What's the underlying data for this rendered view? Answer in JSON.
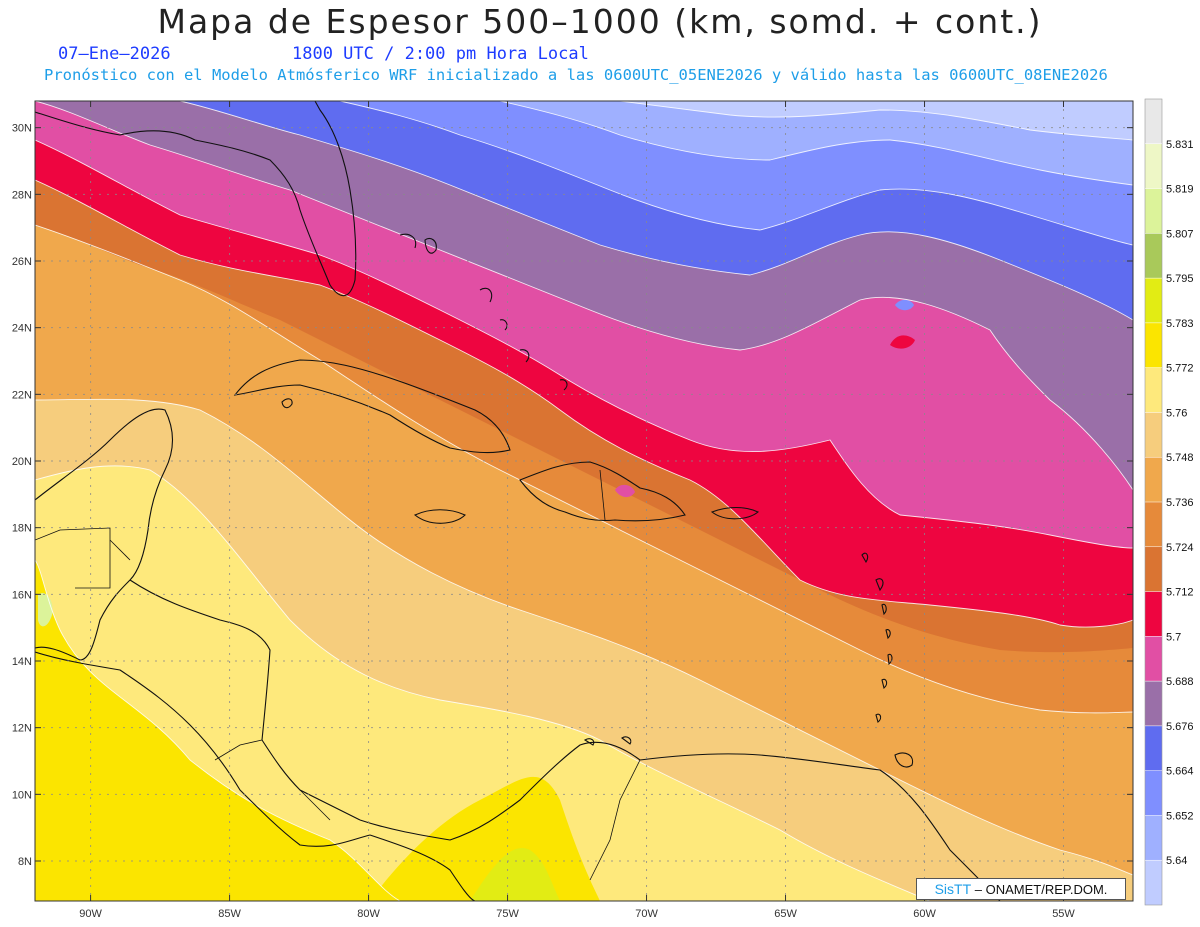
{
  "header": {
    "title": "Mapa de Espesor 500–1000 (km, somd. + cont.)",
    "date": "07–Ene–2026",
    "time": "1800 UTC / 2:00 pm Hora Local",
    "forecast": "Pronóstico con el Modelo Atmósferico WRF inicializado a las 0600UTC_05ENE2026 y válido hasta las  0600UTC_08ENE2026"
  },
  "map": {
    "lon_range": [
      -92,
      -52.5
    ],
    "lat_range": [
      6.8,
      30.8
    ],
    "lon_ticks": [
      {
        "value": -90,
        "label": "90W"
      },
      {
        "value": -85,
        "label": "85W"
      },
      {
        "value": -80,
        "label": "80W"
      },
      {
        "value": -75,
        "label": "75W"
      },
      {
        "value": -70,
        "label": "70W"
      },
      {
        "value": -65,
        "label": "65W"
      },
      {
        "value": -60,
        "label": "60W"
      },
      {
        "value": -55,
        "label": "55W"
      }
    ],
    "lat_ticks": [
      {
        "value": 8,
        "label": "8N"
      },
      {
        "value": 10,
        "label": "10N"
      },
      {
        "value": 12,
        "label": "12N"
      },
      {
        "value": 14,
        "label": "14N"
      },
      {
        "value": 16,
        "label": "16N"
      },
      {
        "value": 18,
        "label": "18N"
      },
      {
        "value": 20,
        "label": "20N"
      },
      {
        "value": 22,
        "label": "22N"
      },
      {
        "value": 24,
        "label": "24N"
      },
      {
        "value": 26,
        "label": "26N"
      },
      {
        "value": 28,
        "label": "28N"
      },
      {
        "value": 30,
        "label": "30N"
      }
    ],
    "grid": true
  },
  "colorbar": {
    "labels": [
      "5.64",
      "5.652",
      "5.664",
      "5.676",
      "5.688",
      "5.7",
      "5.712",
      "5.724",
      "5.736",
      "5.748",
      "5.76",
      "5.772",
      "5.783",
      "5.795",
      "5.807",
      "5.819",
      "5.831"
    ],
    "colors": [
      "#c0ccff",
      "#9fb0ff",
      "#7f8fff",
      "#5f6cf0",
      "#9a6fa8",
      "#e14fa4",
      "#ee0540",
      "#da7432",
      "#e68a3a",
      "#f0a84c",
      "#f6cd7d",
      "#fee97c",
      "#fbe500",
      "#e2ec14",
      "#a9c95a",
      "#dcf39a",
      "#eef7c6",
      "#e8e8e8"
    ]
  },
  "credit": {
    "brand": "SisTT",
    "text": "– ONAMET/REP.DOM."
  }
}
